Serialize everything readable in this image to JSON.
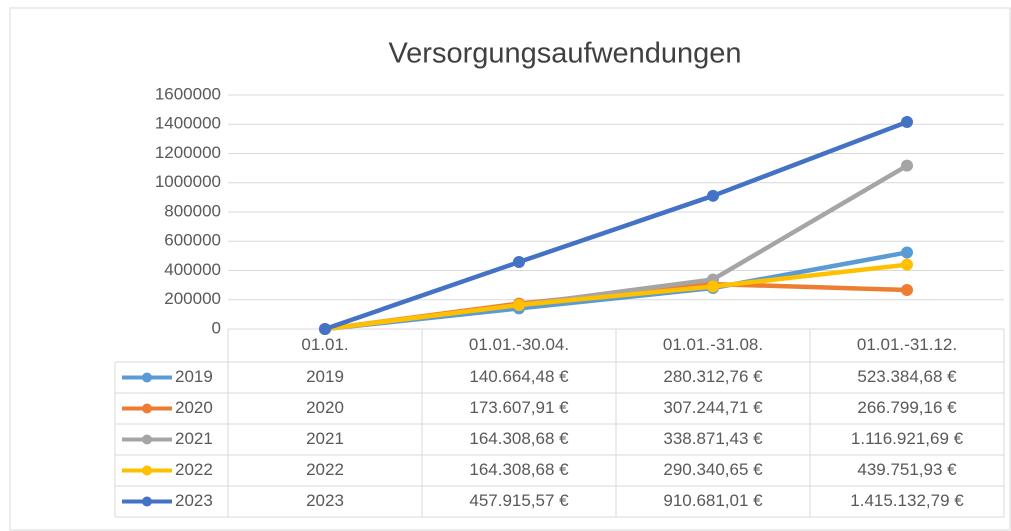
{
  "chart_data": {
    "type": "line",
    "title": "Versorgungsaufwendungen",
    "categories": [
      "01.01.",
      "01.01.-30.04.",
      "01.01.-31.08.",
      "01.01.-31.12."
    ],
    "series": [
      {
        "name": "2019",
        "color": "#5B9BD5",
        "values": [
          0,
          140664.48,
          280312.76,
          523384.68
        ],
        "value_labels": [
          null,
          "140.664,48 €",
          "280.312,76 €",
          "523.384,68 €"
        ]
      },
      {
        "name": "2020",
        "color": "#ED7D31",
        "values": [
          0,
          173607.91,
          307244.71,
          266799.16
        ],
        "value_labels": [
          null,
          "173.607,91 €",
          "307.244,71 €",
          "266.799,16 €"
        ]
      },
      {
        "name": "2021",
        "color": "#A5A5A5",
        "values": [
          0,
          164308.68,
          338871.43,
          1116921.69
        ],
        "value_labels": [
          null,
          "164.308,68 €",
          "338.871,43 €",
          "1.116.921,69 €"
        ]
      },
      {
        "name": "2022",
        "color": "#FFC000",
        "values": [
          0,
          164308.68,
          290340.65,
          439751.93
        ],
        "value_labels": [
          null,
          "164.308,68 €",
          "290.340,65 €",
          "439.751,93 €"
        ]
      },
      {
        "name": "2023",
        "color": "#4472C4",
        "values": [
          0,
          457915.57,
          910681.01,
          1415132.79
        ],
        "value_labels": [
          null,
          "457.915,57 €",
          "910.681,01 €",
          "1.415.132,79 €"
        ]
      }
    ],
    "ylim": [
      0,
      1600000
    ],
    "yticks": [
      0,
      200000,
      400000,
      600000,
      800000,
      1000000,
      1200000,
      1400000,
      1600000
    ],
    "grid": true
  }
}
